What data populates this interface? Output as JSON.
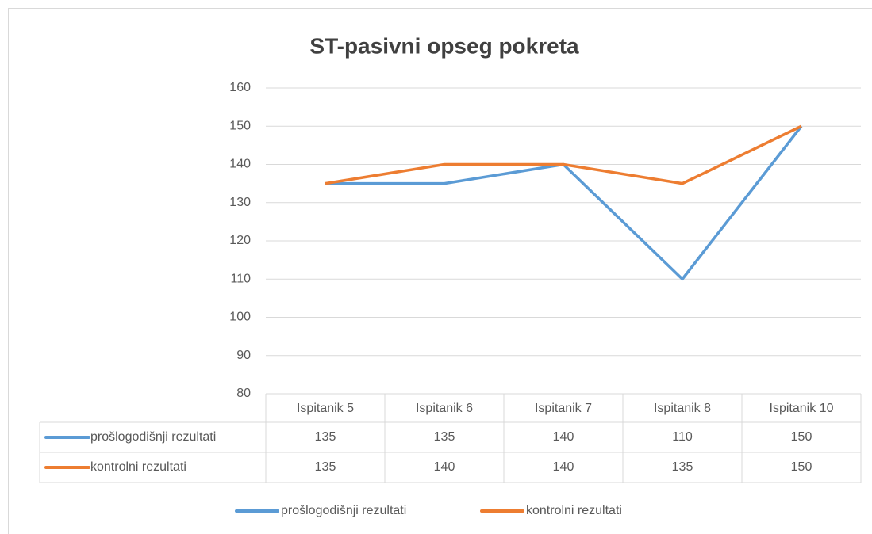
{
  "chart_data": {
    "type": "line",
    "title": "ST-pasivni opseg pokreta",
    "categories": [
      "Ispitanik 5",
      "Ispitanik 6",
      "Ispitanik 7",
      "Ispitanik 8",
      "Ispitanik 10"
    ],
    "series": [
      {
        "name": "prošlogodišnji rezultati",
        "color": "#5b9bd5",
        "values": [
          135,
          135,
          140,
          110,
          150
        ]
      },
      {
        "name": "kontrolni rezultati",
        "color": "#ed7d31",
        "values": [
          135,
          140,
          140,
          135,
          150
        ]
      }
    ],
    "ylim": [
      80,
      160
    ],
    "yticks": [
      80,
      90,
      100,
      110,
      120,
      130,
      140,
      150,
      160
    ],
    "grid": true,
    "legend": "bottom",
    "data_table": true
  }
}
